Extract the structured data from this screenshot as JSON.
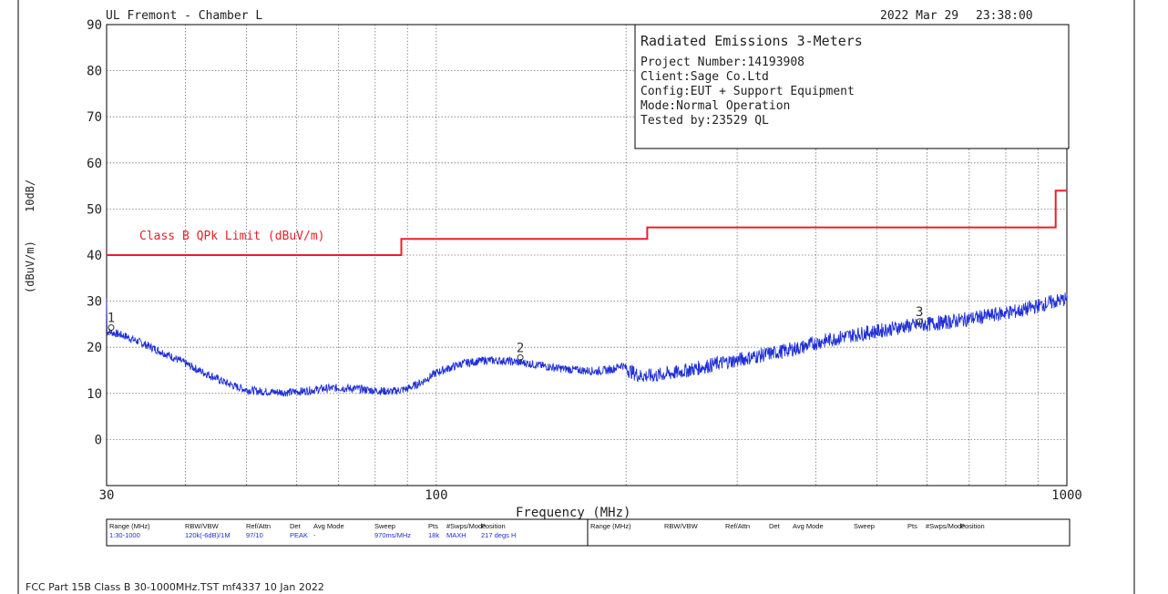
{
  "header": {
    "site": "UL Fremont - Chamber L",
    "date": "2022 Mar 29",
    "time": "23:38:00"
  },
  "info": {
    "title": "Radiated Emissions 3-Meters",
    "lines": [
      "Project Number:14193908",
      "Client:Sage Co.Ltd",
      "Config:EUT + Support Equipment",
      "Mode:Normal Operation",
      "Tested by:23529 QL"
    ]
  },
  "chart_data": {
    "type": "line",
    "xlabel": "Frequency (MHz)",
    "ylabel": "(dBuV/m)",
    "yscale_label": "10dB/",
    "x_scale": "log",
    "xlim": [
      30,
      1000
    ],
    "ylim": [
      -10,
      90
    ],
    "grid": true,
    "y_ticks": [
      90,
      80,
      70,
      60,
      50,
      40,
      30,
      20,
      10,
      0
    ],
    "x_tick_labels": [
      {
        "value": 30,
        "label": "30"
      },
      {
        "value": 100,
        "label": "100"
      },
      {
        "value": 1000,
        "label": "1000"
      }
    ],
    "x_gridlines": [
      40,
      50,
      60,
      70,
      80,
      90,
      100,
      200,
      300,
      400,
      500,
      600,
      700,
      800,
      900
    ],
    "limit": {
      "label": "Class B QPk Limit (dBuV/m)",
      "color": "#e8202a",
      "steps": [
        {
          "x0": 30,
          "x1": 88,
          "y": 40
        },
        {
          "x0": 88,
          "x1": 216,
          "y": 43.5
        },
        {
          "x0": 216,
          "x1": 960,
          "y": 46
        },
        {
          "x0": 960,
          "x1": 1000,
          "y": 54
        }
      ]
    },
    "trace": {
      "color": "#1f2fd6",
      "points": [
        [
          30,
          23.5
        ],
        [
          32,
          22.5
        ],
        [
          34,
          21
        ],
        [
          36,
          19.5
        ],
        [
          38,
          18
        ],
        [
          40,
          16.5
        ],
        [
          42,
          15
        ],
        [
          44,
          13.8
        ],
        [
          46,
          12.5
        ],
        [
          48,
          11.5
        ],
        [
          50,
          10.8
        ],
        [
          52,
          10.5
        ],
        [
          55,
          10.3
        ],
        [
          58,
          10.2
        ],
        [
          62,
          10.5
        ],
        [
          66,
          11
        ],
        [
          70,
          11.2
        ],
        [
          75,
          11
        ],
        [
          80,
          10.6
        ],
        [
          85,
          10.4
        ],
        [
          90,
          11
        ],
        [
          95,
          12.5
        ],
        [
          100,
          14.5
        ],
        [
          105,
          15.5
        ],
        [
          110,
          16.5
        ],
        [
          120,
          17.2
        ],
        [
          130,
          17
        ],
        [
          140,
          16.5
        ],
        [
          150,
          15.8
        ],
        [
          160,
          15.3
        ],
        [
          170,
          15
        ],
        [
          180,
          14.8
        ],
        [
          190,
          15.2
        ],
        [
          197,
          16.2
        ],
        [
          202,
          15
        ],
        [
          210,
          13.8
        ],
        [
          220,
          13.8
        ],
        [
          240,
          14.5
        ],
        [
          260,
          15.5
        ],
        [
          280,
          16.5
        ],
        [
          300,
          17.2
        ],
        [
          320,
          18
        ],
        [
          350,
          19
        ],
        [
          380,
          20
        ],
        [
          400,
          21
        ],
        [
          450,
          22.5
        ],
        [
          500,
          23.5
        ],
        [
          550,
          24.5
        ],
        [
          600,
          25
        ],
        [
          650,
          25.5
        ],
        [
          700,
          26.2
        ],
        [
          750,
          26.8
        ],
        [
          800,
          27.5
        ],
        [
          850,
          28
        ],
        [
          900,
          29
        ],
        [
          950,
          29.8
        ],
        [
          1000,
          30.5
        ]
      ]
    },
    "markers": [
      {
        "label": "1",
        "x": 30.3,
        "y": 23.5
      },
      {
        "label": "2",
        "x": 135,
        "y": 17
      },
      {
        "label": "3",
        "x": 580,
        "y": 24.8
      }
    ]
  },
  "settings": {
    "headers": [
      "Range (MHz)",
      "RBW/VBW",
      "Ref/Attn",
      "Det",
      "Avg Mode",
      "Sweep",
      "Pts",
      "#Swps/Mode",
      "Position"
    ],
    "values": [
      "1:30-1000",
      "120k(-6dB)/1M",
      "97/10",
      "PEAK",
      "-",
      "970ms/MHz",
      "18k",
      "MAXH",
      "217 degs H"
    ],
    "empty_headers": [
      "Range (MHz)",
      "RBW/VBW",
      "Ref/Attn",
      "Det",
      "Avg Mode",
      "Sweep",
      "Pts",
      "#Swps/Mode",
      "Position"
    ]
  },
  "footer": "FCC Part 15B Class B 30-1000MHz.TST mf4337 10 Jan 2022"
}
